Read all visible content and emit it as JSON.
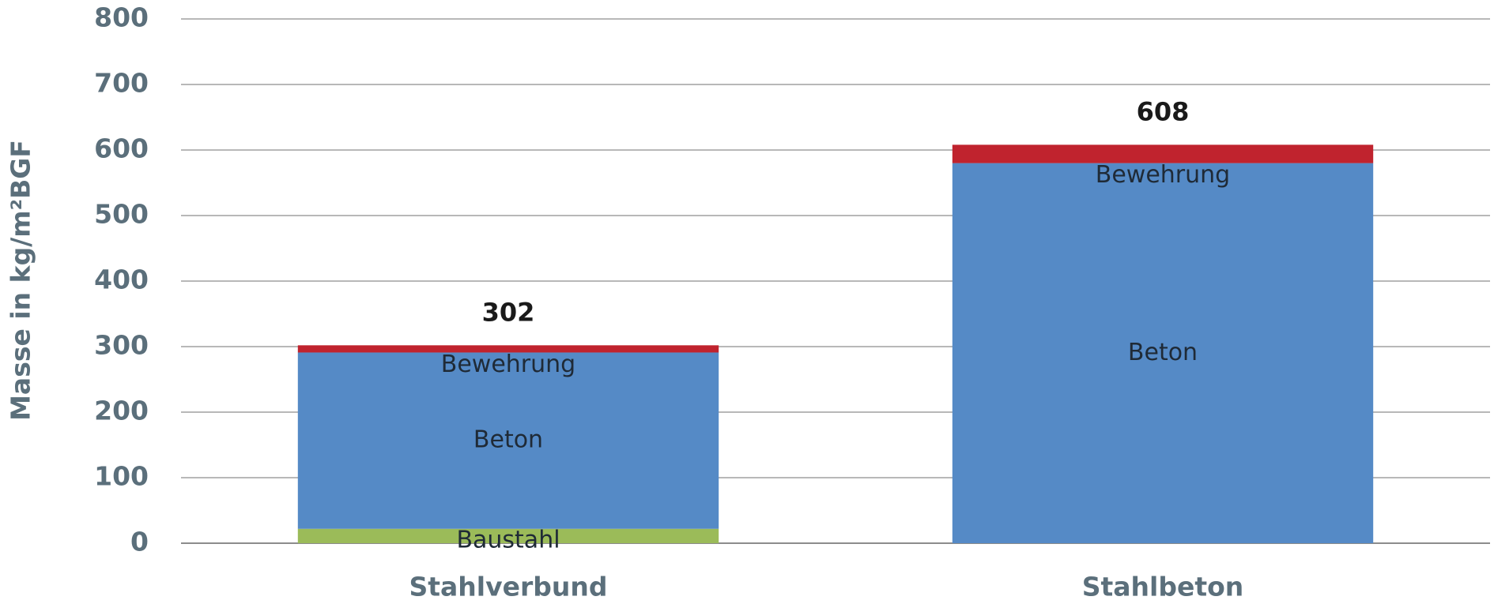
{
  "chart_data": {
    "type": "stacked-bar",
    "y_label": "Masse in kg/m²BGF",
    "categories": [
      "Stahlverbund",
      "Stahlbeton"
    ],
    "series": [
      {
        "name": "Baustahl",
        "color": "#9bbb59",
        "values": [
          22,
          null
        ]
      },
      {
        "name": "Beton",
        "color": "#558ac6",
        "values": [
          269,
          580
        ]
      },
      {
        "name": "Bewehrung",
        "color": "#c0232e",
        "values": [
          11,
          28
        ]
      }
    ],
    "totals": [
      302,
      608
    ],
    "ylim": [
      0,
      800
    ],
    "yticks": [
      0,
      100,
      200,
      300,
      400,
      500,
      600,
      700,
      800
    ],
    "grid": true
  }
}
